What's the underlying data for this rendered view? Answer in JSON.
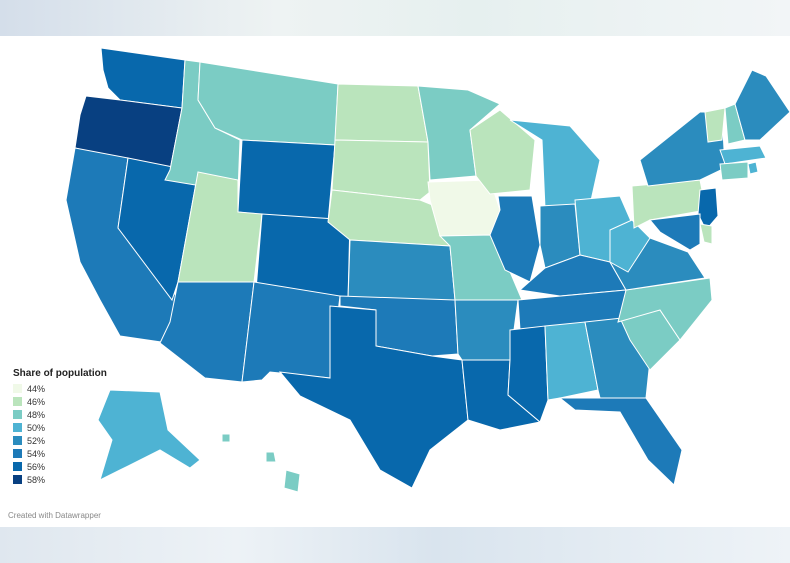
{
  "legend": {
    "title": "Share of population",
    "items": [
      {
        "label": "44%",
        "color": "#f0f9e8"
      },
      {
        "label": "46%",
        "color": "#bae4bc"
      },
      {
        "label": "48%",
        "color": "#7bccc4"
      },
      {
        "label": "50%",
        "color": "#4eb3d3"
      },
      {
        "label": "52%",
        "color": "#2b8cbe"
      },
      {
        "label": "54%",
        "color": "#1d7ab8"
      },
      {
        "label": "56%",
        "color": "#0868ac"
      },
      {
        "label": "58%",
        "color": "#084081"
      }
    ]
  },
  "credit": "Created with Datawrapper",
  "map_data": {
    "type": "choropleth",
    "region": "United States",
    "states": {
      "WA": "56%",
      "OR": "58%",
      "CA": "54%",
      "NV": "56%",
      "ID": "48%",
      "MT": "48%",
      "WY": "56%",
      "UT": "46%",
      "AZ": "54%",
      "CO": "56%",
      "NM": "54%",
      "ND": "46%",
      "SD": "46%",
      "NE": "46%",
      "KS": "52%",
      "OK": "54%",
      "TX": "56%",
      "MN": "48%",
      "IA": "44%",
      "MO": "48%",
      "AR": "52%",
      "LA": "56%",
      "WI": "46%",
      "IL": "54%",
      "MI": "50%",
      "IN": "52%",
      "OH": "50%",
      "KY": "54%",
      "TN": "54%",
      "MS": "56%",
      "AL": "50%",
      "GA": "52%",
      "FL": "54%",
      "SC": "48%",
      "NC": "48%",
      "VA": "52%",
      "WV": "50%",
      "PA": "46%",
      "NY": "52%",
      "VT": "46%",
      "NH": "48%",
      "ME": "52%",
      "MA": "50%",
      "RI": "50%",
      "CT": "48%",
      "NJ": "56%",
      "DE": "46%",
      "MD": "54%",
      "AK": "50%",
      "HI": "48%"
    }
  }
}
